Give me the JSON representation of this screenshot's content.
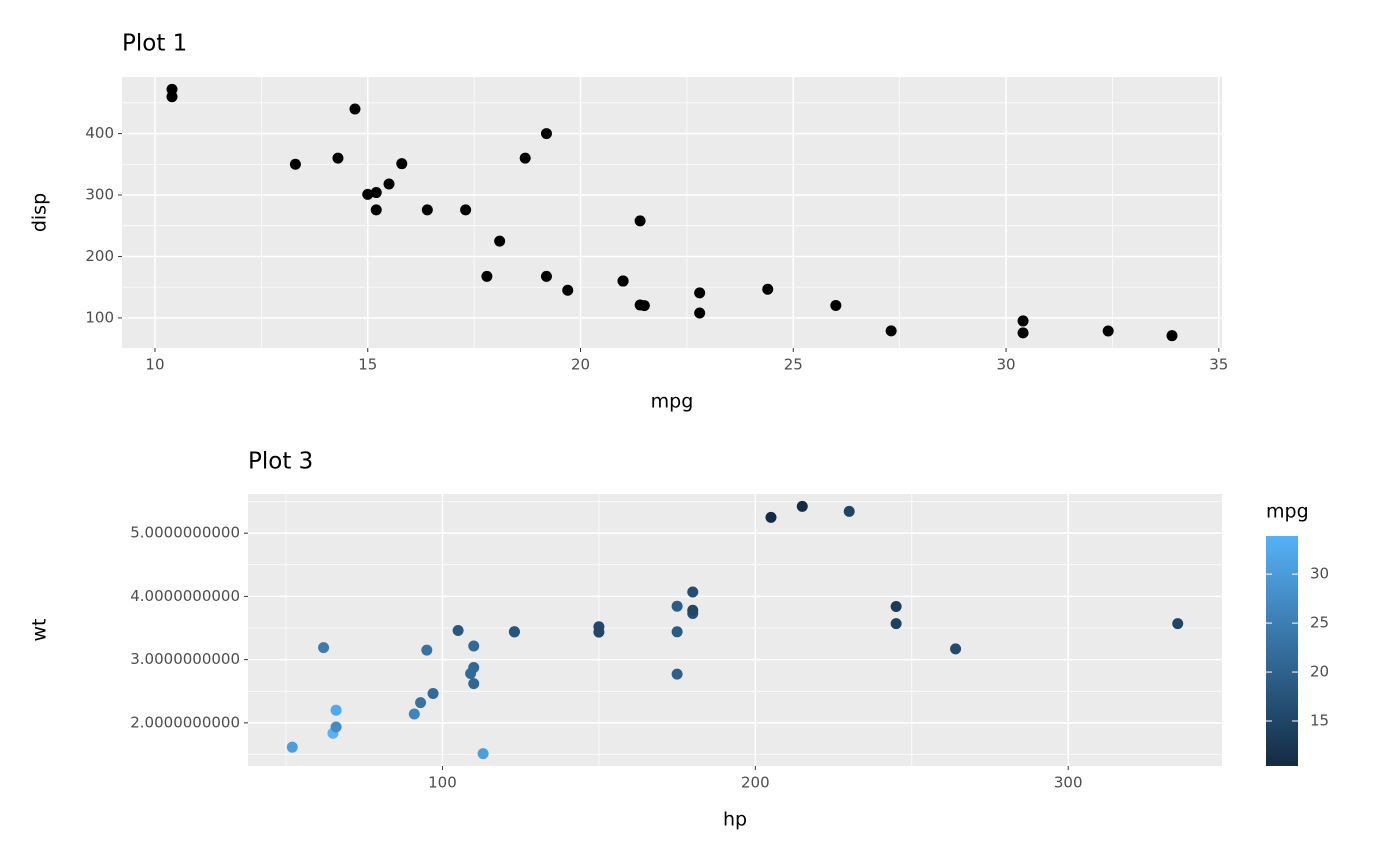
{
  "chart_data": [
    {
      "type": "scatter",
      "title": "Plot 1",
      "x_label": "mpg",
      "y_label": "disp",
      "x": [
        21.0,
        21.0,
        22.8,
        21.4,
        18.7,
        18.1,
        14.3,
        24.4,
        22.8,
        19.2,
        17.8,
        16.4,
        17.3,
        15.2,
        10.4,
        10.4,
        14.7,
        32.4,
        30.4,
        33.9,
        21.5,
        15.5,
        15.2,
        13.3,
        19.2,
        27.3,
        26.0,
        30.4,
        15.8,
        19.7,
        15.0,
        21.4
      ],
      "y": [
        160,
        160,
        108,
        258,
        360,
        225,
        360,
        146.7,
        140.8,
        167.6,
        167.6,
        275.8,
        275.8,
        275.8,
        472,
        460,
        440,
        78.7,
        75.7,
        71.1,
        120.1,
        318,
        304,
        350,
        400,
        79,
        120.3,
        95.1,
        351,
        145,
        301,
        121
      ],
      "color": "#000000",
      "xlim": [
        9.225,
        35.075
      ],
      "ylim": [
        51.055,
        492.045
      ],
      "xticks": [
        10,
        15,
        20,
        25,
        30,
        35
      ],
      "yticks": [
        100,
        200,
        300,
        400
      ],
      "grid": true
    },
    {
      "type": "scatter",
      "title": "Plot 3",
      "x_label": "hp",
      "y_label": "wt",
      "x": [
        110,
        110,
        93,
        110,
        175,
        105,
        245,
        62,
        95,
        123,
        123,
        180,
        180,
        180,
        205,
        215,
        230,
        66,
        52,
        65,
        97,
        150,
        150,
        245,
        175,
        66,
        91,
        113,
        264,
        175,
        335,
        109
      ],
      "y": [
        2.62,
        2.875,
        2.32,
        3.215,
        3.44,
        3.46,
        3.57,
        3.19,
        3.15,
        3.44,
        3.44,
        4.07,
        3.73,
        3.78,
        5.25,
        5.424,
        5.345,
        2.2,
        1.615,
        1.835,
        2.465,
        3.52,
        3.435,
        3.84,
        3.845,
        1.935,
        2.14,
        1.513,
        3.17,
        2.77,
        3.57,
        2.78
      ],
      "color_values": [
        21.0,
        21.0,
        22.8,
        21.4,
        18.7,
        18.1,
        14.3,
        24.4,
        22.8,
        19.2,
        17.8,
        16.4,
        17.3,
        15.2,
        10.4,
        10.4,
        14.7,
        32.4,
        30.4,
        33.9,
        21.5,
        15.5,
        15.2,
        13.3,
        19.2,
        27.3,
        26.0,
        30.4,
        15.8,
        19.7,
        15.0,
        21.4
      ],
      "xlim": [
        37.85,
        349.15
      ],
      "ylim": [
        1.31745,
        5.61955
      ],
      "xticks": [
        100,
        200,
        300
      ],
      "yticks": [
        {
          "value": 2,
          "label": "2.0000000000"
        },
        {
          "value": 3,
          "label": "3.0000000000"
        },
        {
          "value": 4,
          "label": "4.0000000000"
        },
        {
          "value": 5,
          "label": "5.0000000000"
        }
      ],
      "grid": true,
      "colorbar": {
        "title": "mpg",
        "lim": [
          10.4,
          33.9
        ],
        "ticks": [
          15,
          20,
          25,
          30
        ],
        "colors": [
          "#132B43",
          "#56B1F7"
        ]
      }
    }
  ]
}
